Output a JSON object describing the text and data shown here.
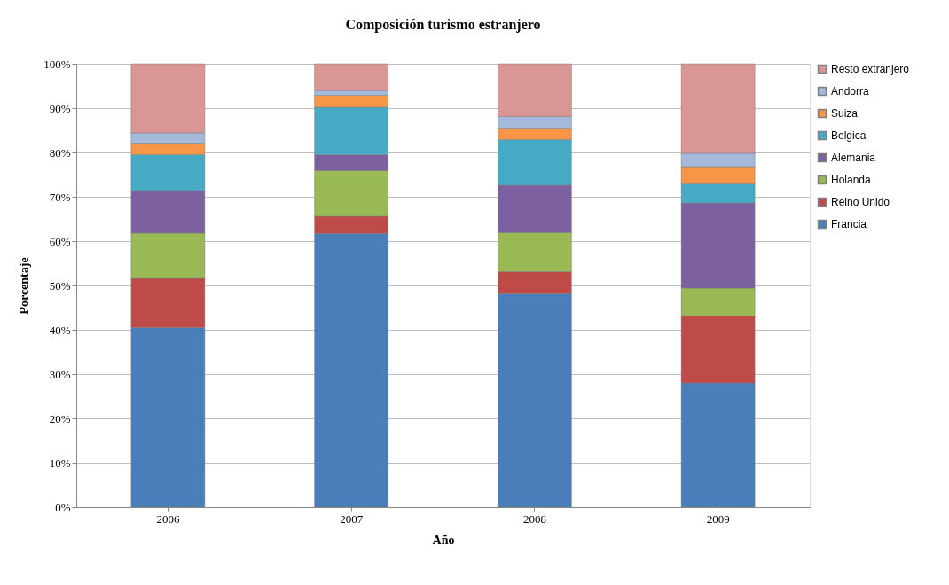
{
  "chart_data": {
    "type": "bar",
    "stacked": true,
    "title": "Composición turismo estranjero",
    "xlabel": "Año",
    "ylabel": "Porcentaje",
    "categories": [
      "2006",
      "2007",
      "2008",
      "2009"
    ],
    "series": [
      {
        "name": "Francia",
        "color": "#4a7ebb",
        "values": [
          40.5,
          61.7,
          48.1,
          28.0
        ]
      },
      {
        "name": "Reino Unido",
        "color": "#be4b48",
        "values": [
          11.1,
          3.9,
          5.0,
          15.1
        ]
      },
      {
        "name": "Holanda",
        "color": "#98b954",
        "values": [
          10.2,
          10.3,
          8.8,
          6.3
        ]
      },
      {
        "name": "Alemania",
        "color": "#7d60a0",
        "values": [
          9.6,
          3.6,
          10.7,
          19.2
        ]
      },
      {
        "name": "Belgica",
        "color": "#46aac5",
        "values": [
          8.1,
          10.7,
          10.3,
          4.3
        ]
      },
      {
        "name": "Suiza",
        "color": "#f79646",
        "values": [
          2.6,
          2.7,
          2.6,
          3.9
        ]
      },
      {
        "name": "Andorra",
        "color": "#a5b9db",
        "values": [
          2.3,
          1.1,
          2.6,
          3.0
        ]
      },
      {
        "name": "Resto extranjero",
        "color": "#d99694",
        "values": [
          15.6,
          6.0,
          11.9,
          20.2
        ]
      }
    ],
    "ylim": [
      0,
      100
    ],
    "yticks": [
      {
        "value": 0,
        "label": "0%"
      },
      {
        "value": 10,
        "label": "10%"
      },
      {
        "value": 20,
        "label": "20%"
      },
      {
        "value": 30,
        "label": "30%"
      },
      {
        "value": 40,
        "label": "40%"
      },
      {
        "value": 50,
        "label": "50%"
      },
      {
        "value": 60,
        "label": "60%"
      },
      {
        "value": 70,
        "label": "70%"
      },
      {
        "value": 80,
        "label": "80%"
      },
      {
        "value": 90,
        "label": "90%"
      },
      {
        "value": 100,
        "label": "100%"
      }
    ],
    "grid": "y",
    "legend": "right"
  }
}
